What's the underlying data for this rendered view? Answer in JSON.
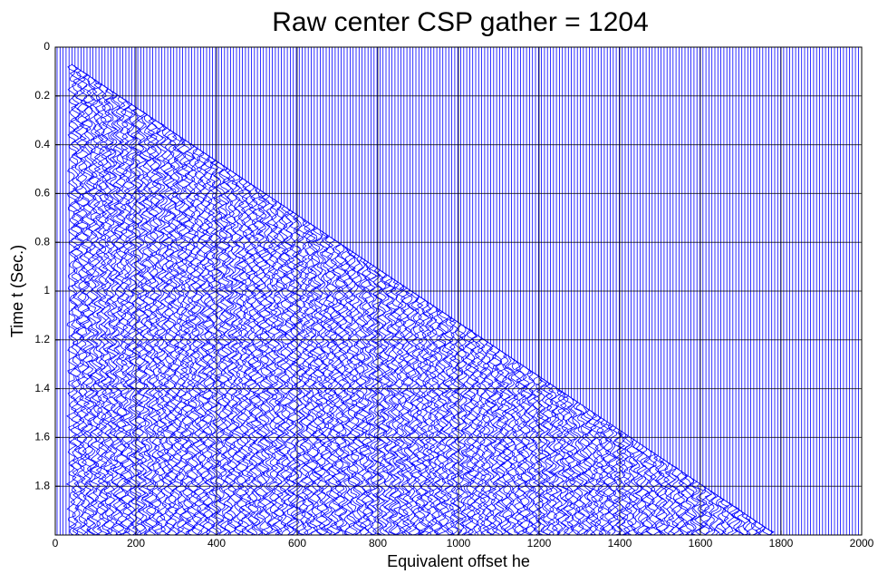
{
  "chart_data": {
    "type": "wiggle",
    "title": "Raw center CSP gather = 1204",
    "xlabel": "Equivalent offset he",
    "ylabel": "Time  t (Sec.)",
    "xlim": [
      0,
      2000
    ],
    "xticks": [
      0,
      200,
      400,
      600,
      800,
      1000,
      1200,
      1400,
      1600,
      1800,
      2000
    ],
    "ylim": [
      0,
      2
    ],
    "yticks": [
      0,
      0.2,
      0.4,
      0.6,
      0.8,
      1,
      1.2,
      1.4,
      1.6,
      1.8
    ],
    "y_reversed": true,
    "grid": true,
    "color": "#0000ff",
    "onset": {
      "x": [
        40,
        1780
      ],
      "y": [
        0.07,
        1.99
      ]
    }
  }
}
